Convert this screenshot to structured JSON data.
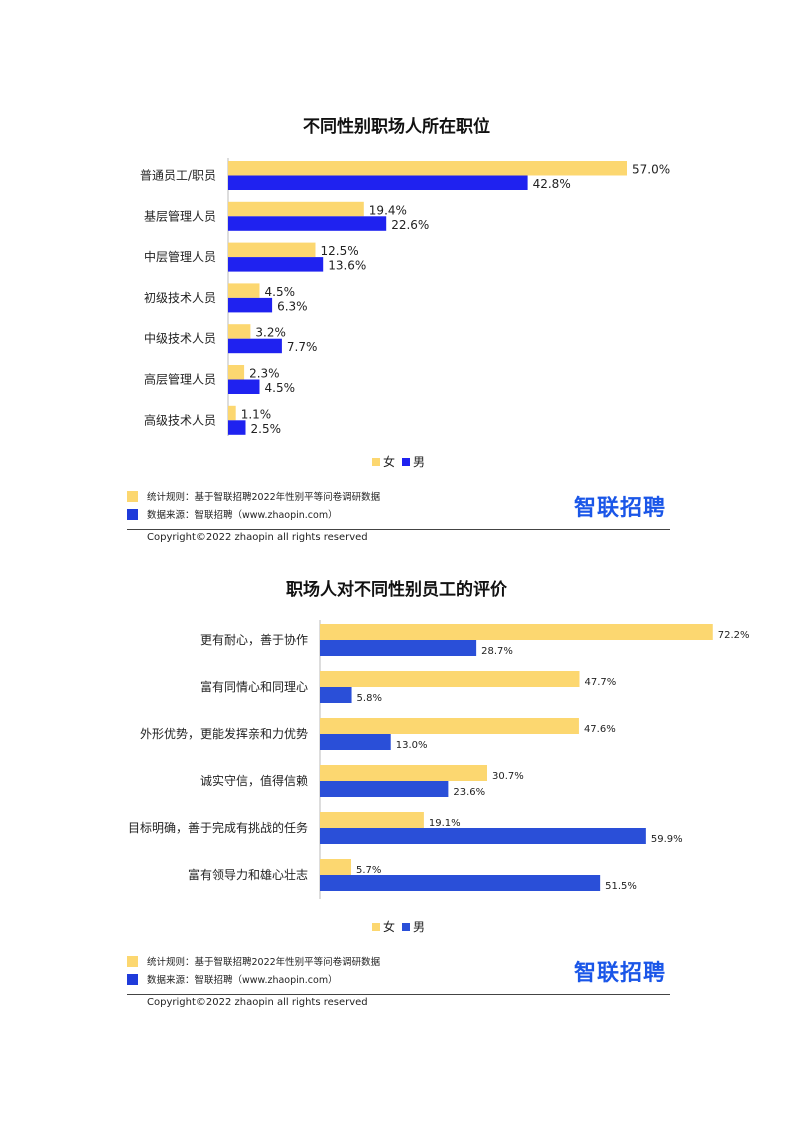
{
  "colors": {
    "female": "#FCD770",
    "male": "#1F22F0",
    "male2": "#2A4FD8",
    "brand": "#1A56E8"
  },
  "chart_data": [
    {
      "type": "bar",
      "orientation": "horizontal",
      "title": "不同性别职场人所在职位",
      "categories": [
        "普通员工/职员",
        "基层管理人员",
        "中层管理人员",
        "初级技术人员",
        "中级技术人员",
        "高层管理人员",
        "高级技术人员"
      ],
      "series": [
        {
          "name": "女",
          "values": [
            57.0,
            19.4,
            12.5,
            4.5,
            3.2,
            2.3,
            1.1
          ],
          "labels": [
            "57.0%",
            "19.4%",
            "12.5%",
            "4.5%",
            "3.2%",
            "2.3%",
            "1.1%"
          ]
        },
        {
          "name": "男",
          "values": [
            42.8,
            22.6,
            13.6,
            6.3,
            7.7,
            4.5,
            2.5
          ],
          "labels": [
            "42.8%",
            "22.6%",
            "13.6%",
            "6.3%",
            "7.7%",
            "4.5%",
            "2.5%"
          ]
        }
      ],
      "xlim": [
        0,
        60
      ],
      "legend": "bottom-center",
      "grid": false
    },
    {
      "type": "bar",
      "orientation": "horizontal",
      "title": "职场人对不同性别员工的评价",
      "categories": [
        "更有耐心，善于协作",
        "富有同情心和同理心",
        "外形优势，更能发挥亲和力优势",
        "诚实守信，值得信赖",
        "目标明确，善于完成有挑战的任务",
        "富有领导力和雄心壮志"
      ],
      "series": [
        {
          "name": "女",
          "values": [
            72.2,
            47.7,
            47.6,
            30.7,
            19.1,
            5.7
          ],
          "labels": [
            "72.2%",
            "47.7%",
            "47.6%",
            "30.7%",
            "19.1%",
            "5.7%"
          ]
        },
        {
          "name": "男",
          "values": [
            28.7,
            5.8,
            13.0,
            23.6,
            59.9,
            51.5
          ],
          "labels": [
            "28.7%",
            "5.8%",
            "13.0%",
            "23.6%",
            "59.9%",
            "51.5%"
          ]
        }
      ],
      "xlim": [
        0,
        75
      ],
      "legend": "bottom-center",
      "grid": false
    }
  ],
  "footer": {
    "stat_rule": "统计规则：基于智联招聘2022年性别平等问卷调研数据",
    "data_source": "数据来源：智联招聘（www.zhaopin.com）",
    "brand": "智联招聘",
    "copyright": "Copyright©2022 zhaopin all rights reserved"
  }
}
